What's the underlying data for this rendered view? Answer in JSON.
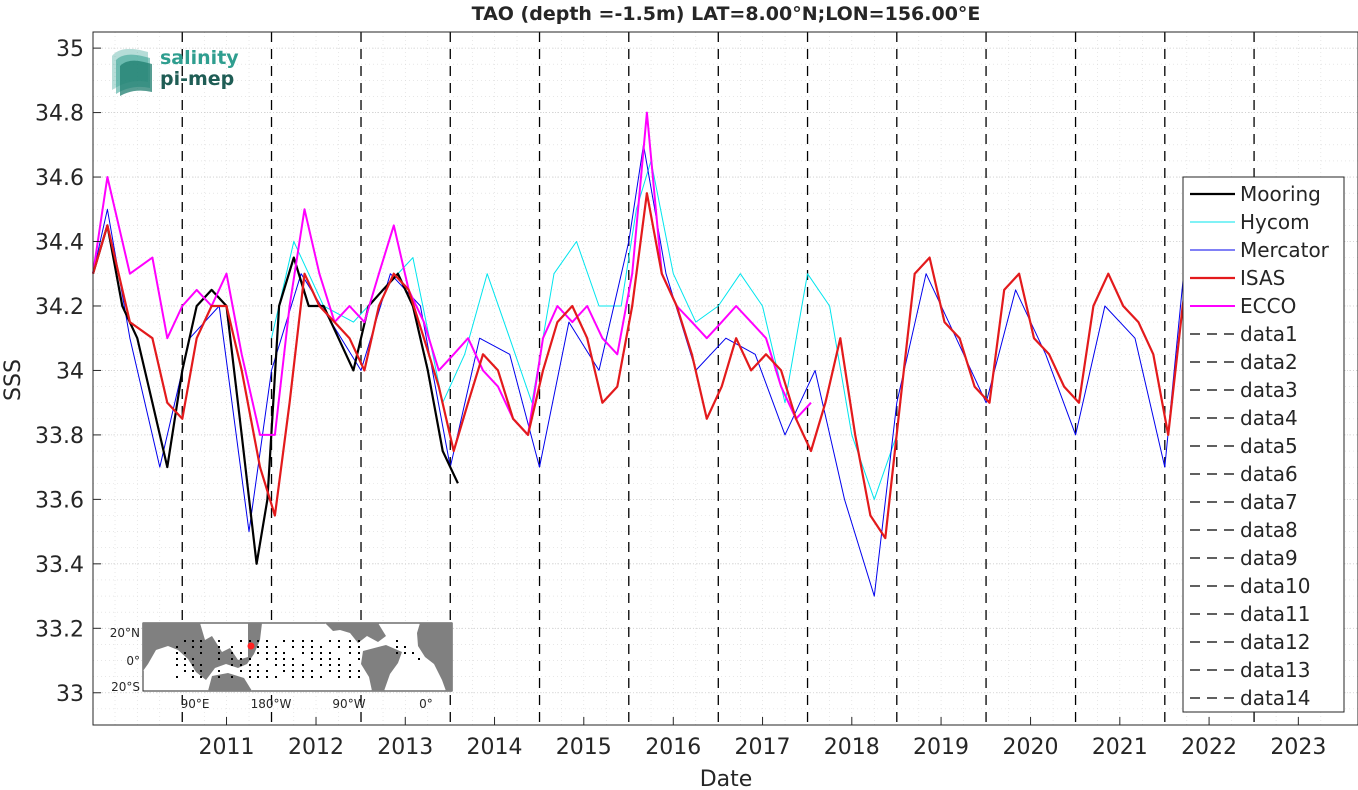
{
  "chart_data": {
    "type": "line",
    "title": "TAO (depth =-1.5m) LAT=8.00°N;LON=156.00°E",
    "xlabel": "Date",
    "ylabel": "SSS",
    "xlim": [
      "2010-01-01",
      "2024-03-01"
    ],
    "ylim": [
      32.9,
      35.05
    ],
    "grid": true,
    "legend_position": "right",
    "x_ticks": [
      "2011",
      "2012",
      "2013",
      "2014",
      "2015",
      "2016",
      "2017",
      "2018",
      "2019",
      "2020",
      "2021",
      "2022",
      "2023"
    ],
    "y_ticks": [
      "33",
      "33.2",
      "33.4",
      "33.6",
      "33.8",
      "34",
      "34.2",
      "34.4",
      "34.6",
      "34.8",
      "35"
    ],
    "vlines": [
      "2011-01-01",
      "2012-01-01",
      "2013-01-01",
      "2014-01-01",
      "2015-01-01",
      "2016-01-01",
      "2017-01-01",
      "2018-01-01",
      "2019-01-01",
      "2020-01-01",
      "2021-01-01",
      "2022-01-01",
      "2023-01-01"
    ],
    "series": [
      {
        "name": "Mooring",
        "color": "#000000",
        "dates": [
          "2010-01-01",
          "2010-03-01",
          "2010-05-01",
          "2010-07-01",
          "2010-09-01",
          "2010-11-01",
          "2011-01-01",
          "2011-03-01",
          "2011-05-01",
          "2011-07-01",
          "2011-09-01",
          "2011-11-01",
          "2011-12-15",
          "2012-02-01",
          "2012-04-01",
          "2012-06-01",
          "2012-08-01",
          "2012-10-01",
          "2012-12-01",
          "2013-02-01",
          "2013-04-01",
          "2013-06-01",
          "2013-08-01",
          "2013-10-01",
          "2013-12-01",
          "2014-02-01"
        ],
        "values": [
          34.3,
          34.45,
          34.2,
          34.1,
          33.9,
          33.7,
          34.0,
          34.2,
          34.25,
          34.2,
          33.8,
          33.4,
          33.6,
          34.2,
          34.35,
          34.2,
          34.2,
          34.1,
          34.0,
          34.2,
          34.25,
          34.3,
          34.2,
          34.0,
          33.75,
          33.65
        ]
      },
      {
        "name": "Hycom",
        "color": "#00e5ee",
        "dates": [
          "2012-01-01",
          "2012-04-01",
          "2012-08-01",
          "2012-12-01",
          "2013-04-01",
          "2013-08-01",
          "2013-12-01",
          "2014-03-01",
          "2014-06-01",
          "2014-09-01",
          "2014-12-01",
          "2015-03-01",
          "2015-06-01",
          "2015-09-01",
          "2015-12-01",
          "2016-02-01",
          "2016-04-01",
          "2016-07-01",
          "2016-10-01",
          "2017-01-01",
          "2017-04-01",
          "2017-07-01",
          "2017-10-01",
          "2018-01-01",
          "2018-04-01",
          "2018-07-01",
          "2018-10-01",
          "2019-01-01"
        ],
        "values": [
          34.1,
          34.4,
          34.2,
          34.15,
          34.25,
          34.35,
          33.9,
          34.05,
          34.3,
          34.1,
          33.9,
          34.3,
          34.4,
          34.2,
          34.2,
          34.5,
          34.65,
          34.3,
          34.15,
          34.2,
          34.3,
          34.2,
          33.9,
          34.3,
          34.2,
          33.8,
          33.6,
          33.8
        ]
      },
      {
        "name": "Mercator",
        "color": "#0000ee",
        "dates": [
          "2010-01-01",
          "2010-03-01",
          "2010-06-01",
          "2010-10-01",
          "2011-02-01",
          "2011-06-01",
          "2011-10-01",
          "2012-01-01",
          "2012-05-01",
          "2012-09-01",
          "2013-01-01",
          "2013-05-01",
          "2013-09-01",
          "2014-01-01",
          "2014-05-01",
          "2014-09-01",
          "2015-01-01",
          "2015-05-01",
          "2015-09-01",
          "2016-01-01",
          "2016-03-01",
          "2016-06-01",
          "2016-10-01",
          "2017-02-01",
          "2017-06-01",
          "2017-10-01",
          "2018-02-01",
          "2018-06-01",
          "2018-10-01",
          "2019-01-01",
          "2019-05-01",
          "2019-09-01",
          "2020-01-01",
          "2020-05-01",
          "2020-09-01",
          "2021-01-01",
          "2021-05-01",
          "2021-09-01",
          "2022-01-01",
          "2022-04-01",
          "2022-07-01",
          "2022-10-01",
          "2023-01-01",
          "2023-03-01"
        ],
        "values": [
          34.3,
          34.5,
          34.1,
          33.7,
          34.1,
          34.2,
          33.5,
          34.0,
          34.3,
          34.15,
          34.0,
          34.3,
          34.2,
          33.7,
          34.1,
          34.05,
          33.7,
          34.15,
          34.0,
          34.4,
          34.7,
          34.3,
          34.0,
          34.1,
          34.05,
          33.8,
          34.0,
          33.6,
          33.3,
          33.9,
          34.3,
          34.1,
          33.9,
          34.25,
          34.05,
          33.8,
          34.2,
          34.1,
          33.7,
          34.4,
          34.5,
          34.2,
          33.9,
          34.6
        ]
      },
      {
        "name": "ISAS",
        "color": "#e31a1c",
        "dates": [
          "2010-01-01",
          "2010-03-01",
          "2010-06-01",
          "2010-09-01",
          "2010-11-01",
          "2011-01-01",
          "2011-03-01",
          "2011-05-01",
          "2011-07-01",
          "2011-09-01",
          "2011-11-15",
          "2012-01-15",
          "2012-03-15",
          "2012-05-15",
          "2012-07-15",
          "2012-09-15",
          "2012-11-15",
          "2013-01-15",
          "2013-03-15",
          "2013-05-15",
          "2013-07-15",
          "2013-09-15",
          "2013-11-15",
          "2014-01-15",
          "2014-03-15",
          "2014-05-15",
          "2014-07-15",
          "2014-09-15",
          "2014-11-15",
          "2015-01-15",
          "2015-03-15",
          "2015-05-15",
          "2015-07-15",
          "2015-09-15",
          "2015-11-15",
          "2016-01-15",
          "2016-03-15",
          "2016-05-15",
          "2016-07-15",
          "2016-09-15",
          "2016-11-15",
          "2017-01-15",
          "2017-03-15",
          "2017-05-15",
          "2017-07-15",
          "2017-09-15",
          "2017-11-15",
          "2018-01-15",
          "2018-03-15",
          "2018-05-15",
          "2018-07-15",
          "2018-09-15",
          "2018-11-15",
          "2019-01-15",
          "2019-03-15",
          "2019-05-15",
          "2019-07-15",
          "2019-09-15",
          "2019-11-15",
          "2020-01-15",
          "2020-03-15",
          "2020-05-15",
          "2020-07-15",
          "2020-09-15",
          "2020-11-15",
          "2021-01-15",
          "2021-03-15",
          "2021-05-15",
          "2021-07-15",
          "2021-09-15",
          "2021-11-15",
          "2022-01-15",
          "2022-03-15",
          "2022-05-15"
        ],
        "values": [
          34.3,
          34.45,
          34.15,
          34.1,
          33.9,
          33.85,
          34.1,
          34.2,
          34.2,
          34.0,
          33.7,
          33.55,
          33.9,
          34.3,
          34.2,
          34.15,
          34.1,
          34.0,
          34.2,
          34.3,
          34.25,
          34.1,
          33.95,
          33.75,
          33.9,
          34.05,
          34.0,
          33.85,
          33.8,
          34.0,
          34.15,
          34.2,
          34.1,
          33.9,
          33.95,
          34.2,
          34.55,
          34.3,
          34.2,
          34.05,
          33.85,
          33.95,
          34.1,
          34.0,
          34.05,
          34.0,
          33.85,
          33.75,
          33.9,
          34.1,
          33.8,
          33.55,
          33.48,
          33.9,
          34.3,
          34.35,
          34.15,
          34.1,
          33.95,
          33.9,
          34.25,
          34.3,
          34.1,
          34.05,
          33.95,
          33.9,
          34.2,
          34.3,
          34.2,
          34.15,
          34.05,
          33.8,
          34.2,
          34.5
        ]
      },
      {
        "name": "ECCO",
        "color": "#ff00ff",
        "dates": [
          "2010-01-01",
          "2010-03-01",
          "2010-06-01",
          "2010-09-01",
          "2010-11-01",
          "2011-01-01",
          "2011-03-01",
          "2011-05-01",
          "2011-07-01",
          "2011-09-01",
          "2011-11-15",
          "2012-01-15",
          "2012-03-15",
          "2012-05-15",
          "2012-07-15",
          "2012-09-15",
          "2012-11-15",
          "2013-01-15",
          "2013-03-15",
          "2013-05-15",
          "2013-07-15",
          "2013-09-15",
          "2013-11-15",
          "2014-01-15",
          "2014-03-15",
          "2014-05-15",
          "2014-07-15",
          "2014-09-15",
          "2014-11-15",
          "2015-01-15",
          "2015-03-15",
          "2015-05-15",
          "2015-07-15",
          "2015-09-15",
          "2015-11-15",
          "2016-01-15",
          "2016-03-15",
          "2016-05-15",
          "2016-07-15",
          "2016-09-15",
          "2016-11-15",
          "2017-01-15",
          "2017-03-15",
          "2017-05-15",
          "2017-07-15",
          "2017-09-15",
          "2017-11-15",
          "2018-01-15"
        ],
        "values": [
          34.3,
          34.6,
          34.3,
          34.35,
          34.1,
          34.2,
          34.25,
          34.2,
          34.3,
          34.05,
          33.8,
          33.8,
          34.2,
          34.5,
          34.3,
          34.15,
          34.2,
          34.15,
          34.3,
          34.45,
          34.25,
          34.15,
          34.0,
          34.05,
          34.1,
          34.0,
          33.95,
          33.85,
          33.8,
          34.1,
          34.2,
          34.15,
          34.2,
          34.1,
          34.05,
          34.3,
          34.8,
          34.3,
          34.2,
          34.15,
          34.1,
          34.15,
          34.2,
          34.15,
          34.1,
          33.95,
          33.85,
          33.9
        ]
      }
    ],
    "legend": [
      "Mooring",
      "Hycom",
      "Mercator",
      "ISAS",
      "ECCO",
      "data1",
      "data2",
      "data3",
      "data4",
      "data5",
      "data6",
      "data7",
      "data8",
      "data9",
      "data10",
      "data11",
      "data12",
      "data13",
      "data14"
    ]
  },
  "logo": {
    "line1": "salinity",
    "line2": "pi-mep"
  },
  "inset_map": {
    "y_labels": [
      "20°N",
      "0°",
      "20°S"
    ],
    "x_labels": [
      "90°E",
      "180°W",
      "90°W",
      "0°"
    ]
  }
}
